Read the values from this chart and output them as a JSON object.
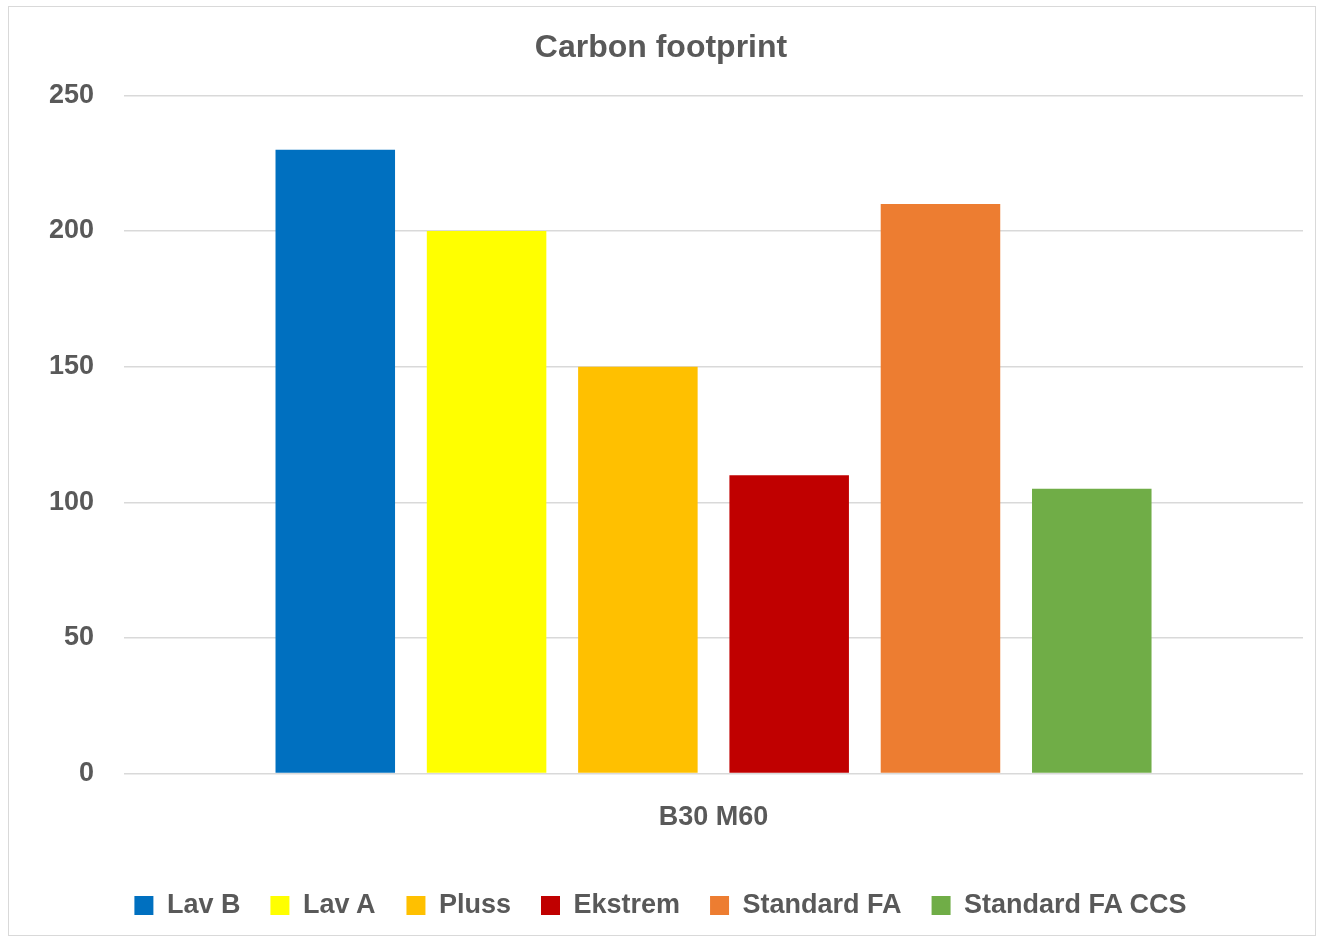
{
  "chart_data": {
    "type": "bar",
    "title": "Carbon footprint",
    "categories": [
      "B30 M60"
    ],
    "series": [
      {
        "name": "Lav B",
        "color": "#0070c0",
        "values": [
          230
        ]
      },
      {
        "name": "Lav A",
        "color": "#ffff00",
        "values": [
          200
        ]
      },
      {
        "name": "Pluss",
        "color": "#ffc000",
        "values": [
          150
        ]
      },
      {
        "name": "Ekstrem",
        "color": "#c00000",
        "values": [
          110
        ]
      },
      {
        "name": "Standard FA",
        "color": "#ed7d31",
        "values": [
          210
        ]
      },
      {
        "name": "Standard FA CCS",
        "color": "#70ad47",
        "values": [
          105
        ]
      }
    ],
    "ylim": [
      0,
      250
    ],
    "yticks": [
      0,
      50,
      100,
      150,
      200,
      250
    ],
    "grid": "y",
    "legend": "bottom"
  }
}
